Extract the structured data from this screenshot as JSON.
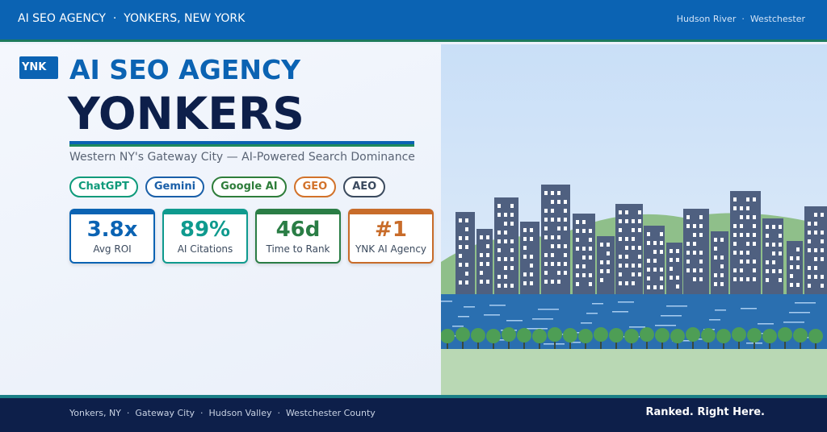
{
  "header": {
    "left": "AI SEO AGENCY  ·  YONKERS, NEW YORK",
    "right": "Hudson River  ·  Westchester"
  },
  "hero": {
    "badge": "YNK",
    "kicker": "AI SEO AGENCY",
    "title": "YONKERS",
    "subtitle": "Western NY's Gateway City — AI-Powered Search Dominance"
  },
  "tags": [
    "ChatGPT",
    "Gemini",
    "Google AI",
    "GEO",
    "AEO"
  ],
  "stats": [
    {
      "value": "3.8x",
      "label": "Avg ROI"
    },
    {
      "value": "89%",
      "label": "AI Citations"
    },
    {
      "value": "46d",
      "label": "Time to Rank"
    },
    {
      "value": "#1",
      "label": "YNK AI Agency"
    }
  ],
  "footer": {
    "locations": "Yonkers, NY  ·  Gateway City  ·  Hudson Valley  ·  Westchester County",
    "tagline": "Ranked. Right Here."
  }
}
